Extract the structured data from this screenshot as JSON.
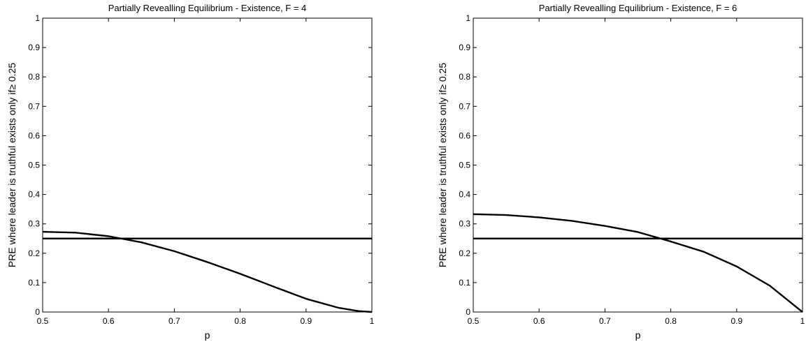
{
  "chart_data": [
    {
      "type": "line",
      "title": "Partially Revealling Equilibrium - Existence, F = 4",
      "xlabel": "p",
      "ylabel": "PRE where leader is truthful exists only if≥ 0.25",
      "xlim": [
        0.5,
        1
      ],
      "ylim": [
        0,
        1
      ],
      "xticks": [
        "0.5",
        "0.6",
        "0.7",
        "0.8",
        "0.9",
        "1"
      ],
      "yticks": [
        "0",
        "0.1",
        "0.2",
        "0.3",
        "0.4",
        "0.5",
        "0.6",
        "0.7",
        "0.8",
        "0.9",
        "1"
      ],
      "grid": false,
      "series": [
        {
          "x": [
            0.5,
            0.55,
            0.6,
            0.65,
            0.7,
            0.75,
            0.8,
            0.85,
            0.9,
            0.95,
            0.98,
            1.0
          ],
          "values": [
            0.273,
            0.27,
            0.258,
            0.237,
            0.207,
            0.17,
            0.13,
            0.087,
            0.045,
            0.014,
            0.003,
            0.0
          ]
        },
        {
          "x": [
            0.5,
            1.0
          ],
          "values": [
            0.25,
            0.25
          ]
        }
      ]
    },
    {
      "type": "line",
      "title": "Partially Revealling Equilibrium - Existence, F = 6",
      "xlabel": "p",
      "ylabel": "PRE where leader is truthful exists only if≥ 0.25",
      "xlim": [
        0.5,
        1
      ],
      "ylim": [
        0,
        1
      ],
      "xticks": [
        "0.5",
        "0.6",
        "0.7",
        "0.8",
        "0.9",
        "1"
      ],
      "yticks": [
        "0",
        "0.1",
        "0.2",
        "0.3",
        "0.4",
        "0.5",
        "0.6",
        "0.7",
        "0.8",
        "0.9",
        "1"
      ],
      "grid": false,
      "series": [
        {
          "x": [
            0.5,
            0.55,
            0.6,
            0.65,
            0.7,
            0.75,
            0.8,
            0.85,
            0.9,
            0.95,
            1.0
          ],
          "values": [
            0.333,
            0.33,
            0.322,
            0.31,
            0.293,
            0.272,
            0.24,
            0.205,
            0.155,
            0.09,
            0.0
          ]
        },
        {
          "x": [
            0.5,
            1.0
          ],
          "values": [
            0.25,
            0.25
          ]
        }
      ]
    }
  ]
}
